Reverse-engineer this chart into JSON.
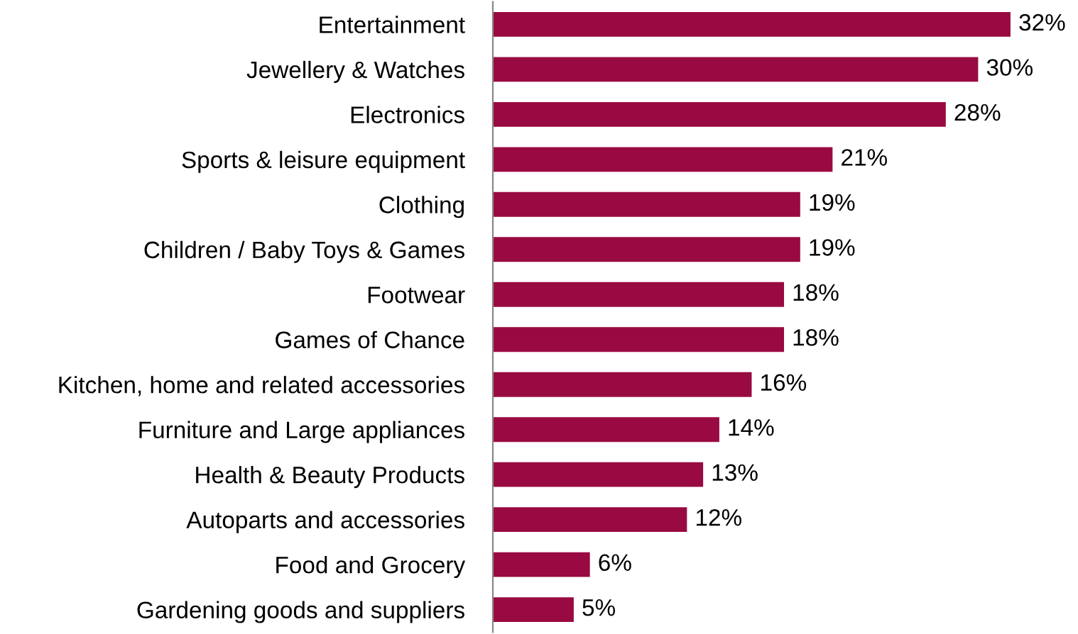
{
  "chart_data": {
    "type": "bar",
    "orientation": "horizontal",
    "categories": [
      "Entertainment",
      "Jewellery & Watches",
      "Electronics",
      "Sports & leisure equipment",
      "Clothing",
      "Children / Baby Toys & Games",
      "Footwear",
      "Games of Chance",
      "Kitchen, home and related accessories",
      "Furniture and Large appliances",
      "Health & Beauty Products",
      "Autoparts and accessories",
      "Food and Grocery",
      "Gardening goods and suppliers"
    ],
    "values": [
      32,
      30,
      28,
      21,
      19,
      19,
      18,
      18,
      16,
      14,
      13,
      12,
      6,
      5
    ],
    "value_labels": [
      "32%",
      "30%",
      "28%",
      "21%",
      "19%",
      "19%",
      "18%",
      "18%",
      "16%",
      "14%",
      "13%",
      "12%",
      "6%",
      "5%"
    ],
    "color": "#990a42",
    "grid": false,
    "legend": false,
    "tick_labels": "y"
  }
}
